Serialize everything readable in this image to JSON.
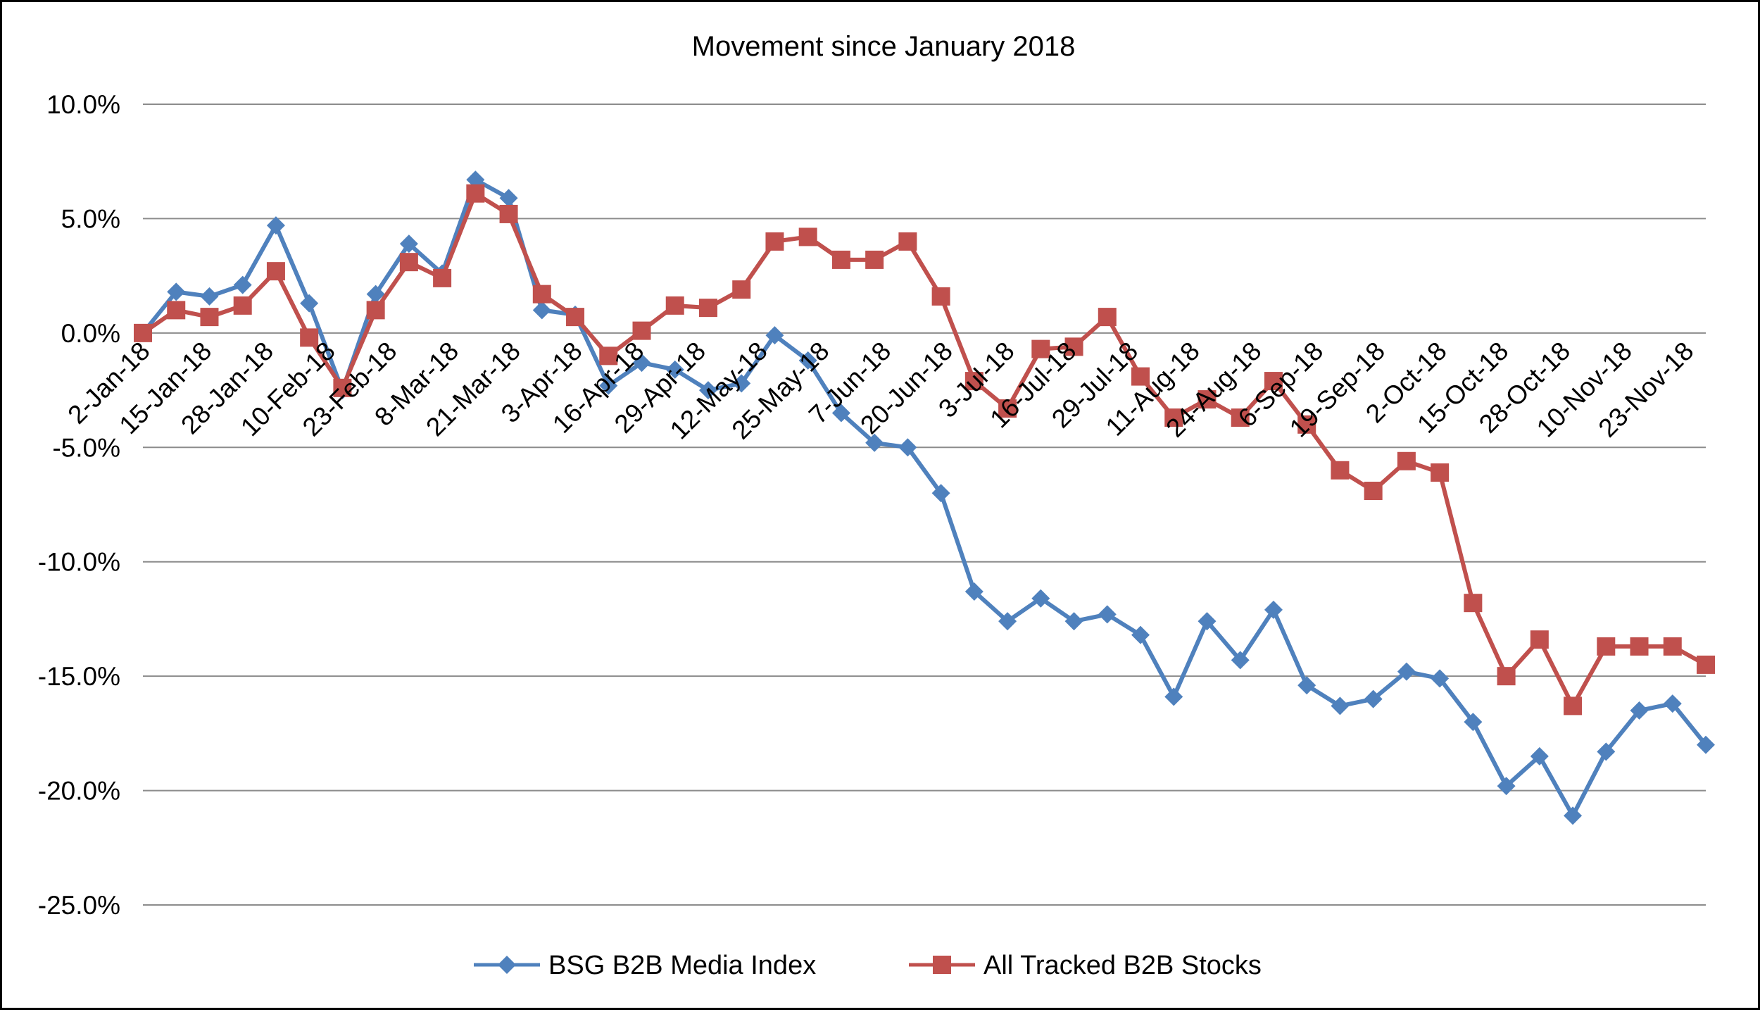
{
  "chart_data": {
    "type": "line",
    "title": "Movement since January 2018",
    "xlabel": "",
    "ylabel": "",
    "ylim": [
      -25,
      10
    ],
    "ytick_values": [
      10,
      5,
      0,
      -5,
      -10,
      -15,
      -20,
      -25
    ],
    "ytick_labels": [
      "10.0%",
      "5.0%",
      "0.0%",
      "-5.0%",
      "-10.0%",
      "-15.0%",
      "-20.0%",
      "-25.0%"
    ],
    "x_dates": [
      "2018-01-02",
      "2018-01-09",
      "2018-01-16",
      "2018-01-23",
      "2018-01-30",
      "2018-02-06",
      "2018-02-13",
      "2018-02-20",
      "2018-02-27",
      "2018-03-06",
      "2018-03-13",
      "2018-03-20",
      "2018-03-27",
      "2018-04-03",
      "2018-04-10",
      "2018-04-17",
      "2018-04-24",
      "2018-05-01",
      "2018-05-08",
      "2018-05-15",
      "2018-05-22",
      "2018-05-29",
      "2018-06-05",
      "2018-06-12",
      "2018-06-19",
      "2018-06-26",
      "2018-07-03",
      "2018-07-10",
      "2018-07-17",
      "2018-07-24",
      "2018-07-31",
      "2018-08-07",
      "2018-08-14",
      "2018-08-21",
      "2018-08-28",
      "2018-09-04",
      "2018-09-11",
      "2018-09-18",
      "2018-09-25",
      "2018-10-02",
      "2018-10-09",
      "2018-10-16",
      "2018-10-23",
      "2018-10-30",
      "2018-11-06",
      "2018-11-13",
      "2018-11-20",
      "2018-11-27"
    ],
    "xtick_dates": [
      "2018-01-02",
      "2018-01-15",
      "2018-01-28",
      "2018-02-10",
      "2018-02-23",
      "2018-03-08",
      "2018-03-21",
      "2018-04-03",
      "2018-04-16",
      "2018-04-29",
      "2018-05-12",
      "2018-05-25",
      "2018-06-07",
      "2018-06-20",
      "2018-07-03",
      "2018-07-16",
      "2018-07-29",
      "2018-08-11",
      "2018-08-24",
      "2018-09-06",
      "2018-09-19",
      "2018-10-02",
      "2018-10-15",
      "2018-10-28",
      "2018-11-10",
      "2018-11-23"
    ],
    "xtick_labels": [
      "2-Jan-18",
      "15-Jan-18",
      "28-Jan-18",
      "10-Feb-18",
      "23-Feb-18",
      "8-Mar-18",
      "21-Mar-18",
      "3-Apr-18",
      "16-Apr-18",
      "29-Apr-18",
      "12-May-18",
      "25-May-18",
      "7-Jun-18",
      "20-Jun-18",
      "3-Jul-18",
      "16-Jul-18",
      "29-Jul-18",
      "11-Aug-18",
      "24-Aug-18",
      "6-Sep-18",
      "19-Sep-18",
      "2-Oct-18",
      "15-Oct-18",
      "28-Oct-18",
      "10-Nov-18",
      "23-Nov-18"
    ],
    "grid": true,
    "legend_position": "bottom",
    "series": [
      {
        "name": "BSG B2B Media Index",
        "color": "#4F81BD",
        "marker": "diamond",
        "values": [
          0.0,
          1.8,
          1.6,
          2.1,
          4.7,
          1.3,
          -2.5,
          1.7,
          3.9,
          2.6,
          6.7,
          5.9,
          1.0,
          0.8,
          -2.3,
          -1.3,
          -1.6,
          -2.5,
          -2.2,
          -0.1,
          -1.2,
          -3.5,
          -4.8,
          -5.0,
          -7.0,
          -11.3,
          -12.6,
          -11.6,
          -12.6,
          -12.3,
          -13.2,
          -15.9,
          -12.6,
          -14.3,
          -12.1,
          -15.4,
          -16.3,
          -16.0,
          -14.8,
          -15.1,
          -17.0,
          -19.8,
          -18.5,
          -21.1,
          -18.3,
          -16.5,
          -16.2,
          -18.0
        ]
      },
      {
        "name": "All Tracked B2B Stocks",
        "color": "#C0504D",
        "marker": "square",
        "values": [
          0.0,
          1.0,
          0.7,
          1.2,
          2.7,
          -0.2,
          -2.4,
          1.0,
          3.1,
          2.4,
          6.1,
          5.2,
          1.7,
          0.7,
          -1.0,
          0.1,
          1.2,
          1.1,
          1.9,
          4.0,
          4.2,
          3.2,
          3.2,
          4.0,
          1.6,
          -2.1,
          -3.3,
          -0.7,
          -0.6,
          0.7,
          -1.9,
          -3.7,
          -2.9,
          -3.7,
          -2.1,
          -4.0,
          -6.0,
          -6.9,
          -5.6,
          -6.1,
          -11.8,
          -15.0,
          -13.4,
          -16.3,
          -13.7,
          -13.7,
          -13.7,
          -14.5
        ]
      }
    ]
  }
}
